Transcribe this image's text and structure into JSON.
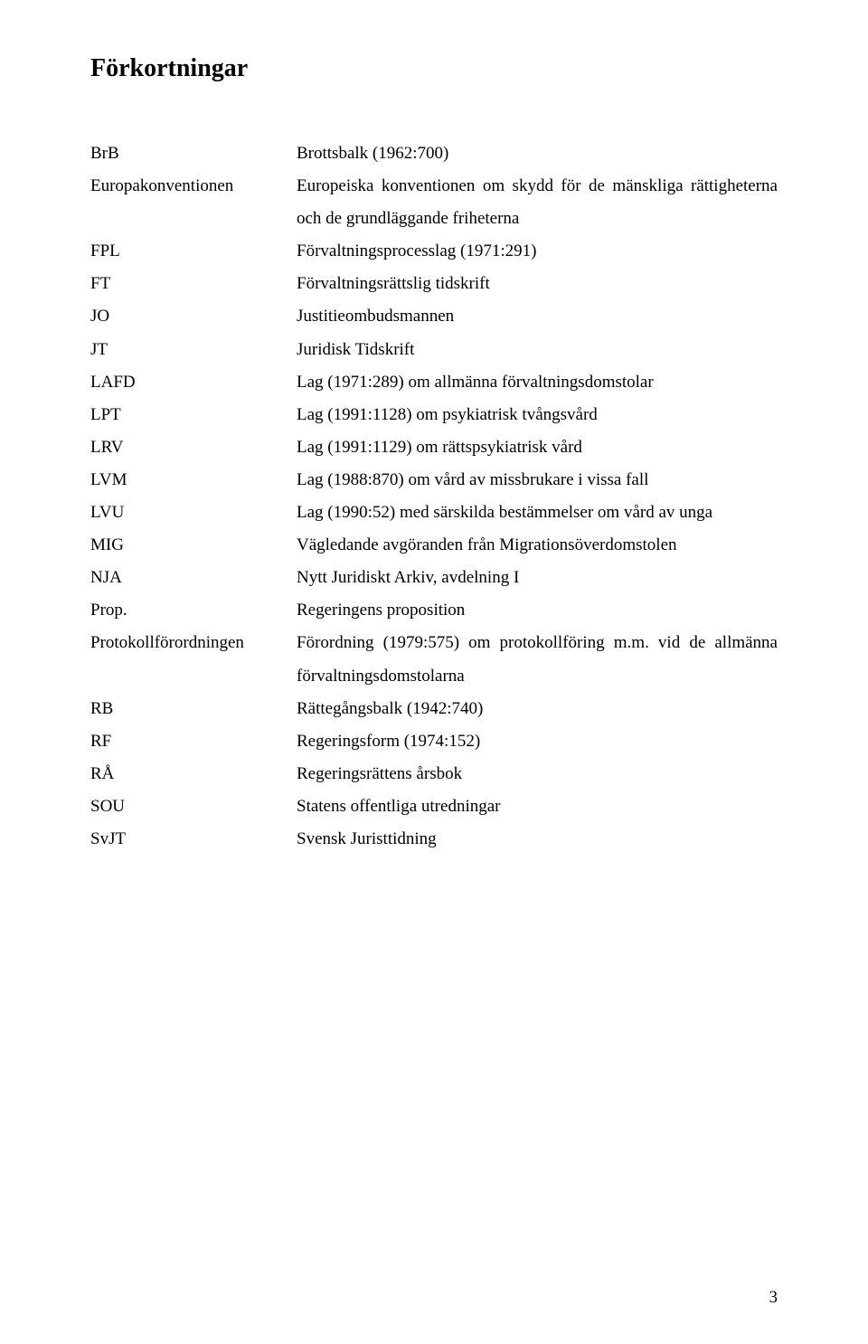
{
  "title": "Förkortningar",
  "entries": [
    {
      "term": "BrB",
      "def": "Brottsbalk (1962:700)"
    },
    {
      "term": "Europakonventionen",
      "def": "Europeiska konventionen om skydd för de mänskliga rättigheterna och de grundläggande friheterna"
    },
    {
      "term": "FPL",
      "def": "Förvaltningsprocesslag (1971:291)"
    },
    {
      "term": "FT",
      "def": "Förvaltningsrättslig tidskrift"
    },
    {
      "term": "JO",
      "def": "Justitieombudsmannen"
    },
    {
      "term": "JT",
      "def": "Juridisk Tidskrift"
    },
    {
      "term": "LAFD",
      "def": "Lag (1971:289) om allmänna förvaltningsdomstolar"
    },
    {
      "term": "LPT",
      "def": "Lag (1991:1128) om psykiatrisk tvångsvård"
    },
    {
      "term": "LRV",
      "def": "Lag (1991:1129) om rättspsykiatrisk vård"
    },
    {
      "term": "LVM",
      "def": "Lag (1988:870) om vård av missbrukare i vissa fall"
    },
    {
      "term": "LVU",
      "def": "Lag (1990:52) med särskilda bestämmelser om vård av unga"
    },
    {
      "term": "MIG",
      "def": "Vägledande avgöranden från Migrationsöverdomstolen"
    },
    {
      "term": "NJA",
      "def": "Nytt Juridiskt Arkiv, avdelning I"
    },
    {
      "term": "Prop.",
      "def": "Regeringens proposition"
    },
    {
      "term": "Protokollförordningen",
      "def": "Förordning (1979:575) om protokollföring m.m. vid de allmänna förvaltningsdomstolarna"
    },
    {
      "term": "RB",
      "def": "Rättegångsbalk (1942:740)"
    },
    {
      "term": "RF",
      "def": "Regeringsform (1974:152)"
    },
    {
      "term": "RÅ",
      "def": "Regeringsrättens årsbok"
    },
    {
      "term": "SOU",
      "def": "Statens offentliga utredningar"
    },
    {
      "term": "SvJT",
      "def": "Svensk Juristtidning"
    }
  ],
  "page_number": "3",
  "colors": {
    "text": "#000000",
    "background": "#ffffff"
  },
  "typography": {
    "title_fontsize": 28,
    "body_fontsize": 19,
    "font_family": "Times New Roman"
  }
}
